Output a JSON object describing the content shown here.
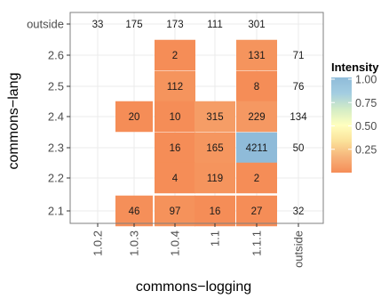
{
  "chart_data": {
    "type": "heatmap",
    "xlabel": "commons−logging",
    "ylabel": "commons−lang",
    "x_categories": [
      "1.0.2",
      "1.0.3",
      "1.0.4",
      "1.1",
      "1.1.1",
      "outside"
    ],
    "y_categories": [
      "2.1",
      "2.2",
      "2.3",
      "2.4",
      "2.5",
      "2.6",
      "outside"
    ],
    "cells": [
      {
        "x": "1.0.2",
        "y": "outside",
        "value": 33,
        "intensity": null
      },
      {
        "x": "1.0.3",
        "y": "outside",
        "value": 175,
        "intensity": null
      },
      {
        "x": "1.0.4",
        "y": "outside",
        "value": 173,
        "intensity": null
      },
      {
        "x": "1.1",
        "y": "outside",
        "value": 111,
        "intensity": null
      },
      {
        "x": "1.1.1",
        "y": "outside",
        "value": 301,
        "intensity": null
      },
      {
        "x": "1.0.4",
        "y": "2.6",
        "value": 2,
        "intensity": 0.0
      },
      {
        "x": "1.1.1",
        "y": "2.6",
        "value": 131,
        "intensity": 0.03
      },
      {
        "x": "outside",
        "y": "2.6",
        "value": 71,
        "intensity": null
      },
      {
        "x": "1.0.4",
        "y": "2.5",
        "value": 112,
        "intensity": 0.03
      },
      {
        "x": "1.1.1",
        "y": "2.5",
        "value": 8,
        "intensity": 0.0
      },
      {
        "x": "outside",
        "y": "2.5",
        "value": 76,
        "intensity": null
      },
      {
        "x": "1.0.3",
        "y": "2.4",
        "value": 20,
        "intensity": 0.0
      },
      {
        "x": "1.0.4",
        "y": "2.4",
        "value": 10,
        "intensity": 0.0
      },
      {
        "x": "1.1",
        "y": "2.4",
        "value": 315,
        "intensity": 0.07
      },
      {
        "x": "1.1.1",
        "y": "2.4",
        "value": 229,
        "intensity": 0.05
      },
      {
        "x": "outside",
        "y": "2.4",
        "value": 134,
        "intensity": null
      },
      {
        "x": "1.0.4",
        "y": "2.3",
        "value": 16,
        "intensity": 0.0
      },
      {
        "x": "1.1",
        "y": "2.3",
        "value": 165,
        "intensity": 0.04
      },
      {
        "x": "1.1.1",
        "y": "2.3",
        "value": 4211,
        "intensity": 1.0
      },
      {
        "x": "outside",
        "y": "2.3",
        "value": 50,
        "intensity": null
      },
      {
        "x": "1.0.4",
        "y": "2.2",
        "value": 4,
        "intensity": 0.0
      },
      {
        "x": "1.1",
        "y": "2.2",
        "value": 119,
        "intensity": 0.03
      },
      {
        "x": "1.1.1",
        "y": "2.2",
        "value": 2,
        "intensity": 0.0
      },
      {
        "x": "1.0.3",
        "y": "2.1",
        "value": 46,
        "intensity": 0.01
      },
      {
        "x": "1.0.4",
        "y": "2.1",
        "value": 97,
        "intensity": 0.02
      },
      {
        "x": "1.1",
        "y": "2.1",
        "value": 16,
        "intensity": 0.0
      },
      {
        "x": "1.1.1",
        "y": "2.1",
        "value": 27,
        "intensity": 0.0
      },
      {
        "x": "outside",
        "y": "2.1",
        "value": 32,
        "intensity": null
      }
    ],
    "legend": {
      "title": "Intensity",
      "placement": "right",
      "ticks": [
        "1.00",
        "0.75",
        "0.50",
        "0.25"
      ],
      "tick_values": [
        1.0,
        0.75,
        0.5,
        0.25
      ],
      "colors": [
        "#f58d57",
        "#f6b37a",
        "#fbe29a",
        "#ffffbf",
        "#d3ecc6",
        "#a3cde1",
        "#8fbbd9"
      ]
    },
    "grid": true
  }
}
